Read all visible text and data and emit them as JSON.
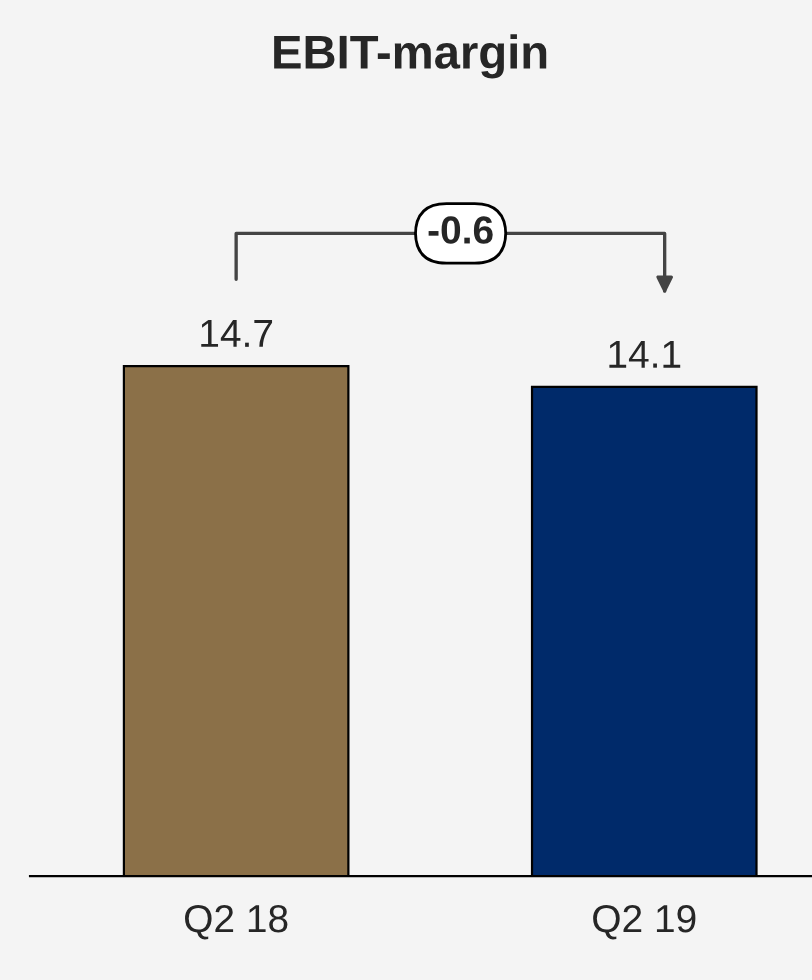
{
  "chart_data": {
    "type": "bar",
    "title": "EBIT-margin",
    "categories": [
      "Q2 18",
      "Q2 19"
    ],
    "values": [
      14.7,
      14.1
    ],
    "colors": [
      "#8b7048",
      "#002a6a"
    ],
    "data_labels": true,
    "annotations": [
      "-0.6"
    ]
  }
}
